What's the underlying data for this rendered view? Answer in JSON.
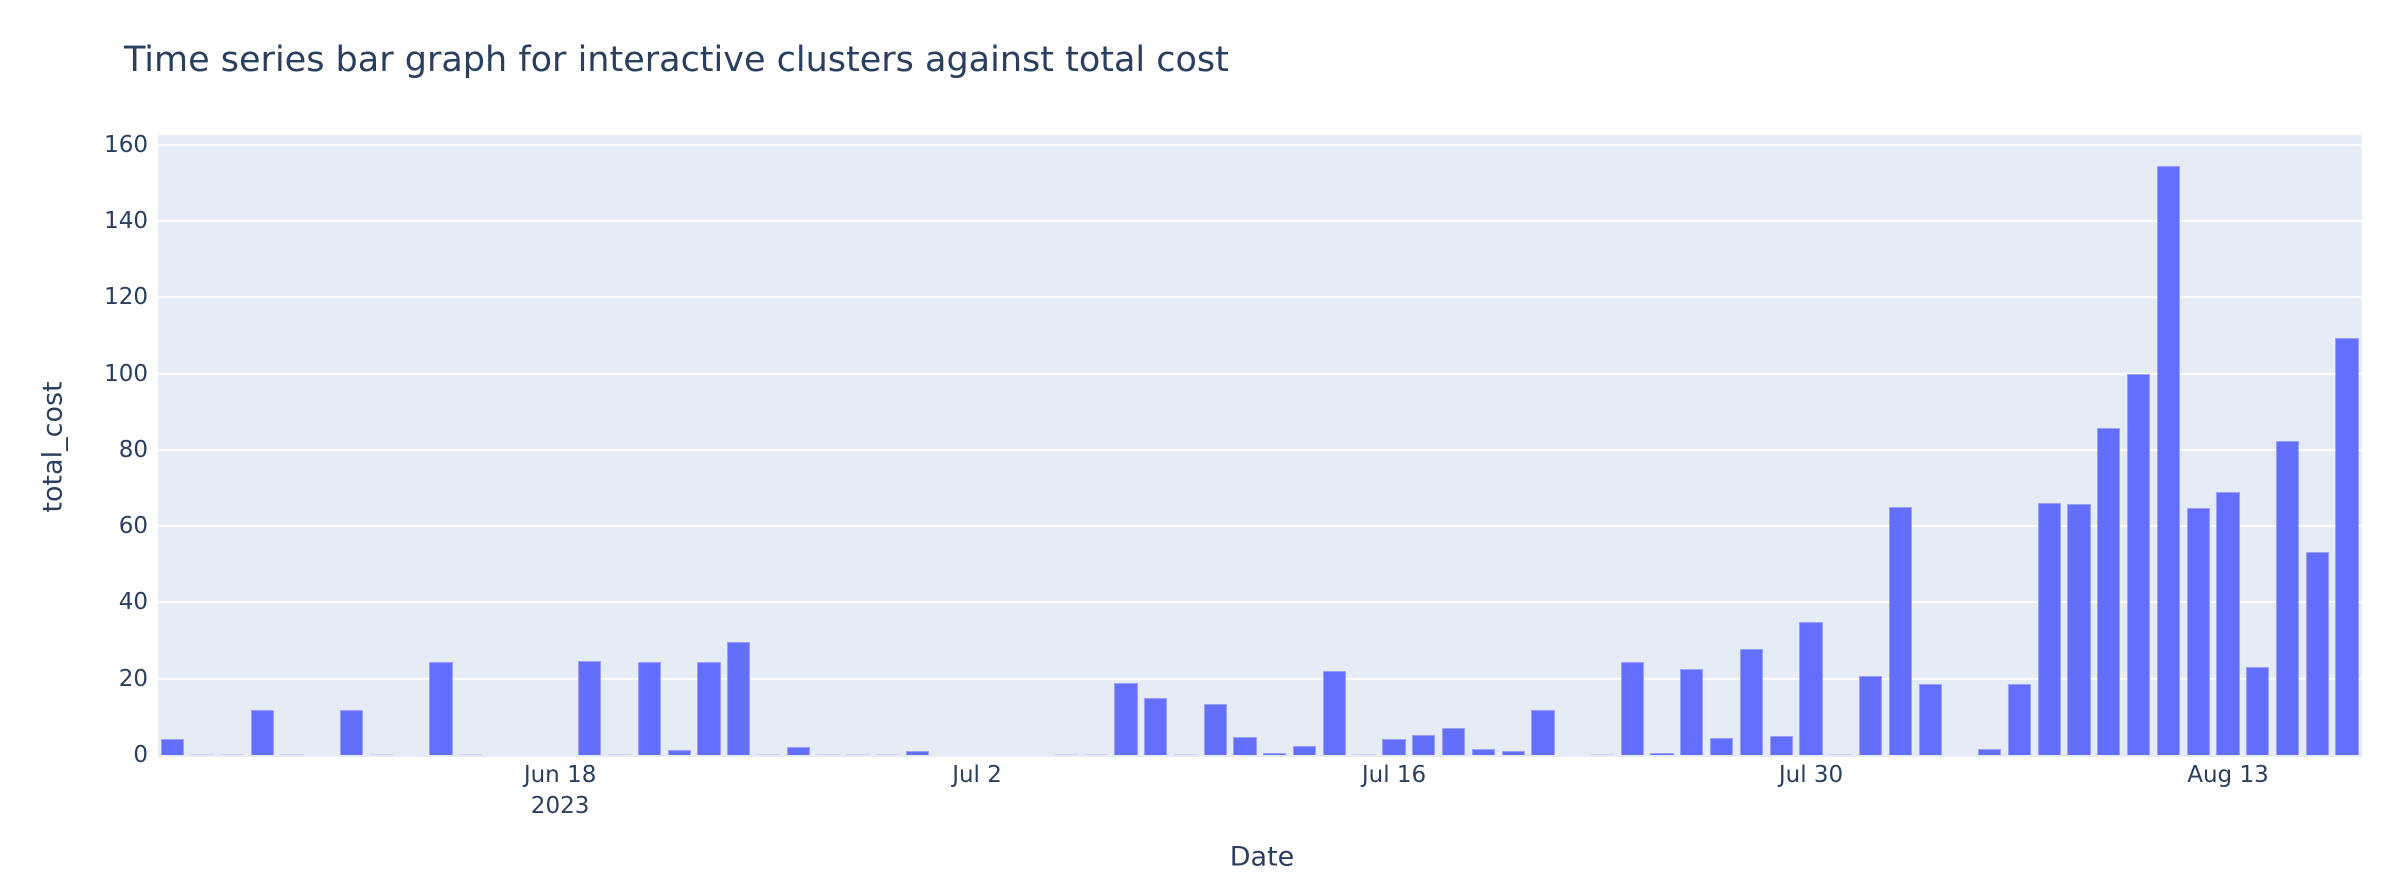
{
  "chart_data": {
    "type": "bar",
    "title": "Time series bar graph for interactive clusters against total cost",
    "xlabel": "Date",
    "ylabel": "total_cost",
    "ylim": [
      0,
      162
    ],
    "yticks": [
      0,
      20,
      40,
      60,
      80,
      100,
      120,
      140,
      160
    ],
    "xticks": [
      {
        "label": "Jun 18",
        "sublabel": "2023",
        "date": "2023-06-18"
      },
      {
        "label": "Jul 2",
        "sublabel": "",
        "date": "2023-07-02"
      },
      {
        "label": "Jul 16",
        "sublabel": "",
        "date": "2023-07-16"
      },
      {
        "label": "Jul 30",
        "sublabel": "",
        "date": "2023-07-30"
      },
      {
        "label": "Aug 13",
        "sublabel": "",
        "date": "2023-08-13"
      }
    ],
    "grid": true,
    "legend": false,
    "bar_color": "#636efa",
    "plot_bg": "#e5ecf6",
    "x_range": [
      "2023-06-04T12:00",
      "2023-08-17T12:00"
    ],
    "series": [
      {
        "name": "total_cost",
        "x": [
          "2023-06-05",
          "2023-06-06",
          "2023-06-07",
          "2023-06-08",
          "2023-06-09",
          "2023-06-11",
          "2023-06-12",
          "2023-06-14",
          "2023-06-15",
          "2023-06-19",
          "2023-06-20",
          "2023-06-21",
          "2023-06-22",
          "2023-06-23",
          "2023-06-24",
          "2023-06-25",
          "2023-06-26",
          "2023-06-27",
          "2023-06-28",
          "2023-06-29",
          "2023-06-30",
          "2023-07-05",
          "2023-07-06",
          "2023-07-07",
          "2023-07-08",
          "2023-07-09",
          "2023-07-10",
          "2023-07-11",
          "2023-07-12",
          "2023-07-13",
          "2023-07-14",
          "2023-07-15",
          "2023-07-16",
          "2023-07-17",
          "2023-07-18",
          "2023-07-19",
          "2023-07-20",
          "2023-07-21",
          "2023-07-23",
          "2023-07-24",
          "2023-07-25",
          "2023-07-26",
          "2023-07-27",
          "2023-07-28",
          "2023-07-29",
          "2023-07-30",
          "2023-07-31",
          "2023-08-01",
          "2023-08-02",
          "2023-08-03",
          "2023-08-05",
          "2023-08-06",
          "2023-08-07",
          "2023-08-08",
          "2023-08-09",
          "2023-08-10",
          "2023-08-11",
          "2023-08-12",
          "2023-08-13",
          "2023-08-14",
          "2023-08-15",
          "2023-08-16",
          "2023-08-17"
        ],
        "values": [
          4.1,
          0.1,
          0.3,
          11.9,
          0.1,
          11.9,
          0.1,
          24.5,
          0.1,
          24.6,
          0.1,
          24.3,
          1.2,
          24.5,
          29.7,
          0.1,
          2.1,
          0.1,
          0.1,
          0.1,
          1.0,
          0.1,
          0.1,
          18.9,
          14.9,
          0.1,
          13.5,
          4.7,
          0.6,
          2.4,
          21.9,
          0.1,
          4.1,
          5.2,
          7.0,
          1.6,
          1.1,
          11.9,
          0.1,
          24.5,
          0.5,
          22.5,
          4.5,
          27.7,
          5.0,
          34.9,
          0.3,
          20.8,
          65.1,
          18.6,
          1.6,
          18.6,
          66.1,
          65.9,
          85.6,
          100.0,
          154.3,
          64.8,
          69.0,
          23.1,
          82.2,
          53.3,
          109.2
        ]
      }
    ]
  }
}
